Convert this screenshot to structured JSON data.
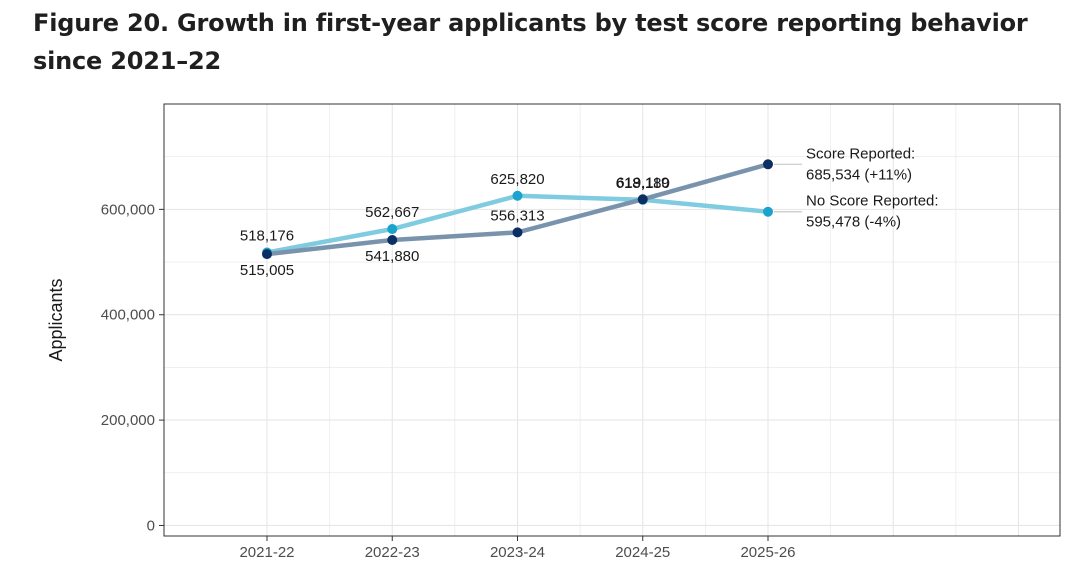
{
  "figure": {
    "title": "Figure 20. Growth in first-year applicants by test score reporting behavior since 2021–22"
  },
  "colors": {
    "score_reported": "#7a93ad",
    "score_reported_point": "#0b2f63",
    "no_score_reported": "#7fcbe0",
    "no_score_reported_point": "#1aa3cc",
    "grid": "#e6e6e6",
    "panel_border": "#333333"
  },
  "chart_data": {
    "type": "line",
    "ylabel": "Applicants",
    "xlabel": "",
    "categories": [
      "2021-22",
      "2022-23",
      "2023-24",
      "2024-25",
      "2025-26"
    ],
    "ylim": [
      -20000,
      800000
    ],
    "yticks": [
      0,
      200000,
      400000,
      600000
    ],
    "ytick_labels": [
      "0",
      "200,000",
      "400,000",
      "600,000"
    ],
    "grid": true,
    "series": [
      {
        "key": "score_reported",
        "values": [
          515005,
          541880,
          556313,
          619119,
          685534
        ],
        "labels": [
          "515,005",
          "541,880",
          "556,313",
          "619,119",
          ""
        ],
        "label_pos": [
          "below",
          "below",
          "above",
          "above",
          ""
        ],
        "end_label": [
          "Score Reported:",
          "685,534 (+11%)"
        ]
      },
      {
        "key": "no_score_reported",
        "values": [
          518176,
          562667,
          625820,
          618180,
          595478
        ],
        "labels": [
          "518,176",
          "562,667",
          "625,820",
          "618,180",
          ""
        ],
        "label_pos": [
          "above",
          "above",
          "above",
          "above",
          ""
        ],
        "end_label": [
          "No Score Reported:",
          "595,478 (-4%)"
        ]
      }
    ]
  }
}
